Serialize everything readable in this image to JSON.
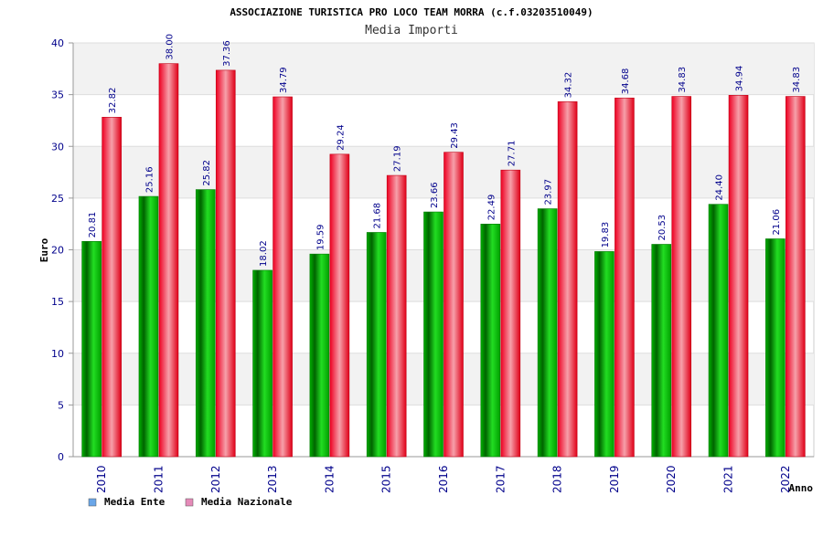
{
  "chart_data": {
    "type": "bar",
    "title": "ASSOCIAZIONE TURISTICA PRO LOCO TEAM MORRA (c.f.03203510049)",
    "subtitle": "Media Importi",
    "xlabel": "Anno",
    "ylabel": "Euro",
    "ylim": [
      0,
      40
    ],
    "yticks": [
      0,
      5,
      10,
      15,
      20,
      25,
      30,
      35,
      40
    ],
    "grid": true,
    "legend_position": "bottom-left",
    "categories": [
      "2010",
      "2011",
      "2012",
      "2013",
      "2014",
      "2015",
      "2016",
      "2017",
      "2018",
      "2019",
      "2020",
      "2021",
      "2022"
    ],
    "series": [
      {
        "name": "Media Ente",
        "color": "#00aa00",
        "legend_color": "#6aa6e8",
        "values": [
          20.81,
          25.16,
          25.82,
          18.02,
          19.59,
          21.68,
          23.66,
          22.49,
          23.97,
          19.83,
          20.53,
          24.4,
          21.06
        ],
        "labels": [
          "20.81",
          "25.16",
          "25.82",
          "18.02",
          "19.59",
          "21.68",
          "23.66",
          "22.49",
          "23.97",
          "19.83",
          "20.53",
          "24.40",
          "21.06"
        ]
      },
      {
        "name": "Media Nazionale",
        "color": "#e8001c",
        "legend_color": "#e58ab8",
        "values": [
          32.82,
          38.0,
          37.36,
          34.79,
          29.24,
          27.19,
          29.43,
          27.71,
          34.32,
          34.68,
          34.83,
          34.94,
          34.83
        ],
        "labels": [
          "32.82",
          "38.00",
          "37.36",
          "34.79",
          "29.24",
          "27.19",
          "29.43",
          "27.71",
          "34.32",
          "34.68",
          "34.83",
          "34.94",
          "34.83"
        ]
      }
    ]
  }
}
